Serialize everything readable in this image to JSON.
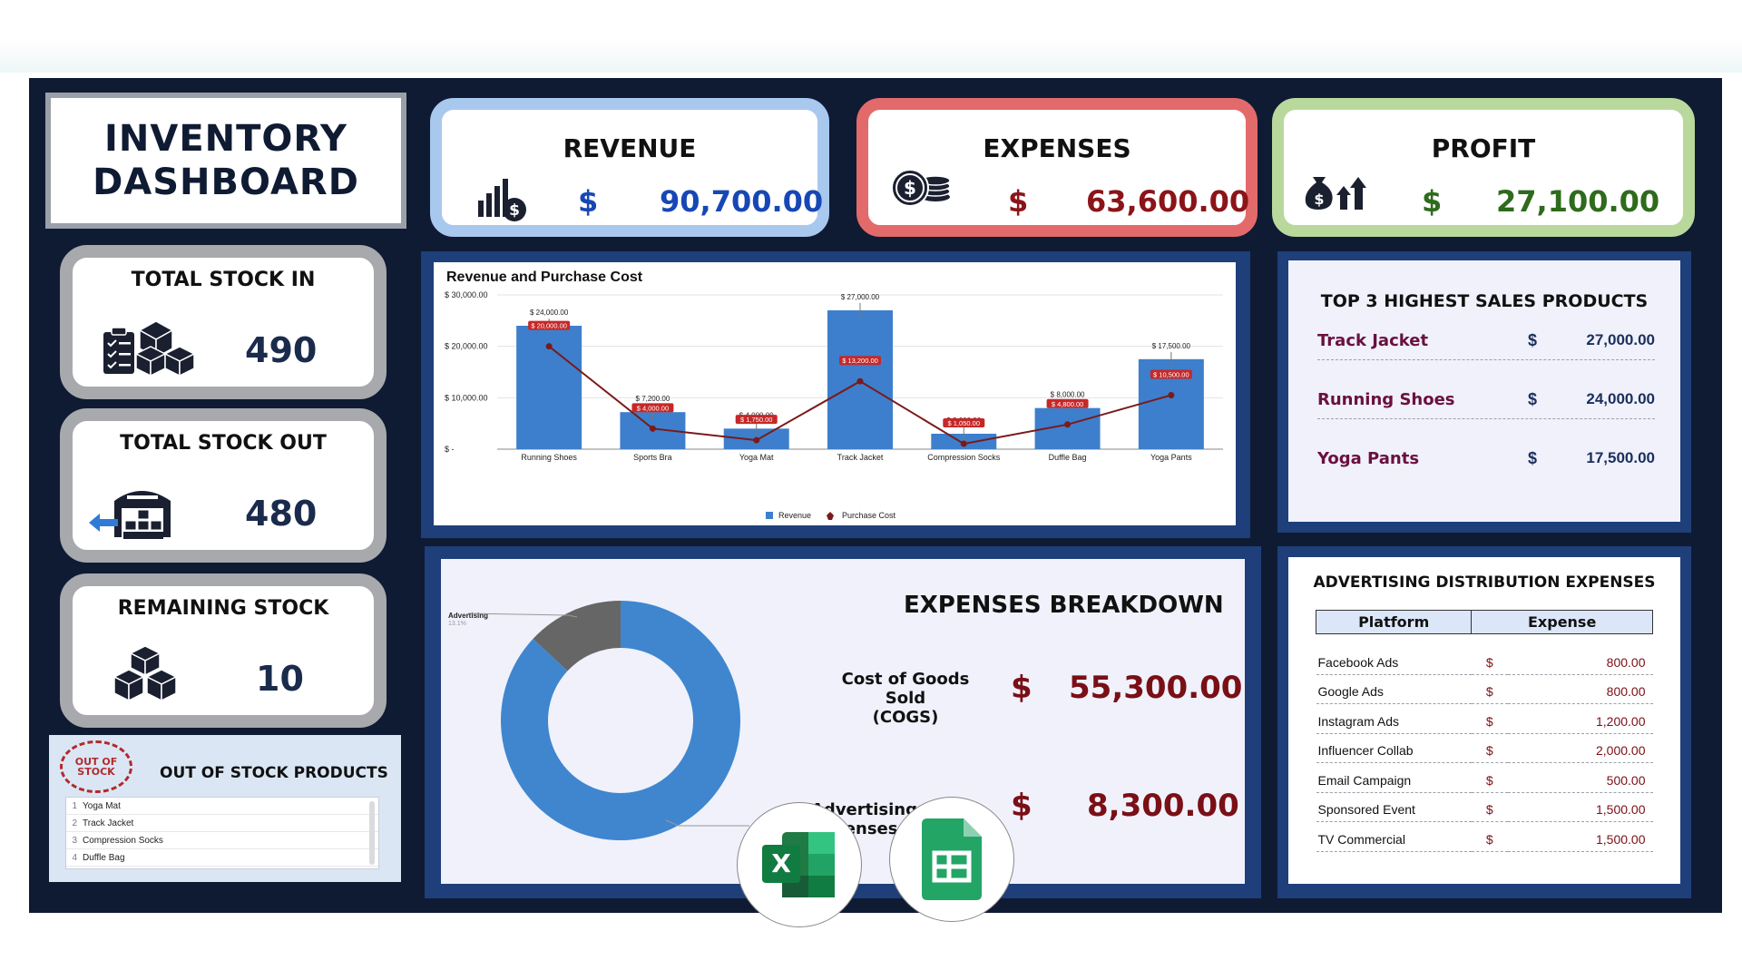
{
  "dashboard": {
    "title_line1": "INVENTORY",
    "title_line2": "DASHBOARD"
  },
  "kpis": {
    "revenue": {
      "label": "REVENUE",
      "currency": "$",
      "value": "90,700.00",
      "color": "#1747b5",
      "icon": "bar-chart-dollar-icon"
    },
    "expenses": {
      "label": "EXPENSES",
      "currency": "$",
      "value": "63,600.00",
      "color": "#8b1418",
      "icon": "coins-icon"
    },
    "profit": {
      "label": "PROFIT",
      "currency": "$",
      "value": "27,100.00",
      "color": "#2e6b1c",
      "icon": "money-bag-growth-icon"
    }
  },
  "stock": {
    "total_in": {
      "label": "TOTAL STOCK IN",
      "value": "490",
      "icon": "boxes-checklist-icon"
    },
    "total_out": {
      "label": "TOTAL STOCK OUT",
      "value": "480",
      "icon": "warehouse-out-icon"
    },
    "remaining": {
      "label": "REMAINING STOCK",
      "value": "10",
      "icon": "boxes-icon"
    }
  },
  "out_of_stock": {
    "badge_line1": "OUT OF",
    "badge_line2": "STOCK",
    "title": "OUT OF STOCK PRODUCTS",
    "items": [
      {
        "n": "1",
        "name": "Yoga Mat"
      },
      {
        "n": "2",
        "name": "Track Jacket"
      },
      {
        "n": "3",
        "name": "Compression Socks"
      },
      {
        "n": "4",
        "name": "Duffle Bag"
      }
    ]
  },
  "chart_data": {
    "type": "bar",
    "title": "Revenue  and  Purchase Cost",
    "categories": [
      "Running Shoes",
      "Sports Bra",
      "Yoga Mat",
      "Track Jacket",
      "Compression Socks",
      "Duffle Bag",
      "Yoga Pants"
    ],
    "series": [
      {
        "name": "Revenue",
        "type": "bar",
        "values": [
          24000,
          7200,
          4000,
          27000,
          3000,
          8000,
          17500
        ],
        "labels": [
          "$ 24,000.00",
          "$ 7,200.00",
          "$ 4,000.00",
          "$ 27,000.00",
          "$ 3,000.00",
          "$ 8,000.00",
          "$ 17,500.00"
        ],
        "color": "#3d7fcc"
      },
      {
        "name": "Purchase Cost",
        "type": "line",
        "values": [
          20000,
          4000,
          1750,
          13200,
          1050,
          4800,
          10500
        ],
        "labels": [
          "$ 20,000.00",
          "$ 4,000.00",
          "$ 1,750.00",
          "$ 13,200.00",
          "$ 1,050.00",
          "$ 4,800.00",
          "$ 10,500.00"
        ],
        "color": "#7a1a1a"
      }
    ],
    "y_ticks": [
      "$ 30,000.00",
      "$ 20,000.00",
      "$ 10,000.00",
      "$ -"
    ],
    "ylim": [
      0,
      30000
    ],
    "legend_position": "bottom",
    "grid": true
  },
  "expenses_breakdown": {
    "title": "EXPENSES BREAKDOWN",
    "cogs_label_line1": "Cost of Goods Sold",
    "cogs_label_line2": "(COGS)",
    "cogs_currency": "$",
    "cogs_value": "55,300.00",
    "adv_label": "Advertising Expenses",
    "adv_currency": "$",
    "adv_value": "8,300.00",
    "donut_label": "Advertising",
    "donut_pct": "13.1%",
    "donut": {
      "type": "pie",
      "slices": [
        {
          "name": "Cost of Goods Sold (COGS)",
          "value": 55300,
          "color": "#3f86cf"
        },
        {
          "name": "Advertising",
          "value": 8300,
          "color": "#666666"
        }
      ]
    }
  },
  "top3": {
    "title": "TOP 3 HIGHEST SALES PRODUCTS",
    "items": [
      {
        "name": "Track Jacket",
        "currency": "$",
        "value": "27,000.00"
      },
      {
        "name": "Running Shoes",
        "currency": "$",
        "value": "24,000.00"
      },
      {
        "name": "Yoga Pants",
        "currency": "$",
        "value": "17,500.00"
      }
    ]
  },
  "advertising": {
    "title": "ADVERTISING DISTRIBUTION EXPENSES",
    "col_platform": "Platform",
    "col_expense": "Expense",
    "rows": [
      {
        "platform": "Facebook Ads",
        "currency": "$",
        "expense": "800.00"
      },
      {
        "platform": "Google Ads",
        "currency": "$",
        "expense": "800.00"
      },
      {
        "platform": "Instagram Ads",
        "currency": "$",
        "expense": "1,200.00"
      },
      {
        "platform": "Influencer Collab",
        "currency": "$",
        "expense": "2,000.00"
      },
      {
        "platform": "Email Campaign",
        "currency": "$",
        "expense": "500.00"
      },
      {
        "platform": "Sponsored Event",
        "currency": "$",
        "expense": "1,500.00"
      },
      {
        "platform": "TV Commercial",
        "currency": "$",
        "expense": "1,500.00"
      }
    ]
  },
  "apps": {
    "excel_letter": "X",
    "excel_icon": "excel-icon",
    "sheets_icon": "google-sheets-icon"
  }
}
